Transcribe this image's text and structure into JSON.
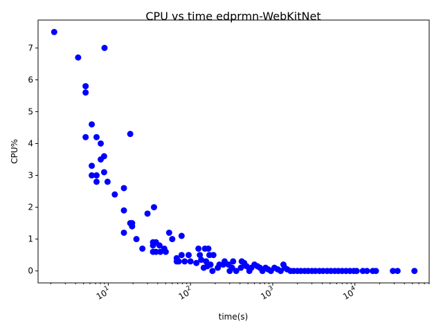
{
  "chart_data": {
    "type": "scatter",
    "title": "CPU vs time edprmn-WebKitNet",
    "xlabel": "time(s)",
    "ylabel": "CPU%",
    "xscale": "log",
    "xlim": [
      1.4,
      80000
    ],
    "ylim": [
      -0.375,
      7.875
    ],
    "grid": false,
    "marker_color": "#0000ff",
    "x_ticks": [
      {
        "value": 10,
        "base": "10",
        "exp": "1"
      },
      {
        "value": 100,
        "base": "10",
        "exp": "2"
      },
      {
        "value": 1000,
        "base": "10",
        "exp": "3"
      },
      {
        "value": 10000,
        "base": "10",
        "exp": "4"
      }
    ],
    "y_ticks": [
      {
        "value": 0,
        "label": "0"
      },
      {
        "value": 1,
        "label": "1"
      },
      {
        "value": 2,
        "label": "2"
      },
      {
        "value": 3,
        "label": "3"
      },
      {
        "value": 4,
        "label": "4"
      },
      {
        "value": 5,
        "label": "5"
      },
      {
        "value": 6,
        "label": "6"
      },
      {
        "value": 7,
        "label": "7"
      }
    ],
    "points": [
      [
        2.2,
        7.5
      ],
      [
        4.3,
        6.7
      ],
      [
        9,
        7.0
      ],
      [
        5.3,
        5.8
      ],
      [
        5.3,
        5.6
      ],
      [
        6.3,
        4.6
      ],
      [
        18.5,
        4.3
      ],
      [
        5.3,
        4.2
      ],
      [
        7.2,
        4.2
      ],
      [
        8.1,
        4.0
      ],
      [
        8.9,
        3.6
      ],
      [
        8.1,
        3.5
      ],
      [
        6.3,
        3.3
      ],
      [
        6.3,
        3.0
      ],
      [
        7.2,
        3.0
      ],
      [
        8.9,
        3.1
      ],
      [
        7.2,
        2.8
      ],
      [
        9.8,
        2.8
      ],
      [
        15.5,
        2.6
      ],
      [
        12,
        2.4
      ],
      [
        15.5,
        1.9
      ],
      [
        36,
        2.0
      ],
      [
        30,
        1.8
      ],
      [
        18.5,
        1.5
      ],
      [
        19.5,
        1.5
      ],
      [
        19.5,
        1.4
      ],
      [
        15.5,
        1.2
      ],
      [
        55,
        1.2
      ],
      [
        78,
        1.1
      ],
      [
        22,
        1.0
      ],
      [
        60,
        1.0
      ],
      [
        26,
        0.7
      ],
      [
        35,
        0.9
      ],
      [
        38,
        0.9
      ],
      [
        42,
        0.8
      ],
      [
        35,
        0.8
      ],
      [
        48,
        0.7
      ],
      [
        35,
        0.6
      ],
      [
        38,
        0.6
      ],
      [
        43,
        0.6
      ],
      [
        50,
        0.6
      ],
      [
        125,
        0.7
      ],
      [
        150,
        0.7
      ],
      [
        165,
        0.7
      ],
      [
        68,
        0.4
      ],
      [
        78,
        0.5
      ],
      [
        95,
        0.5
      ],
      [
        130,
        0.5
      ],
      [
        170,
        0.5
      ],
      [
        190,
        0.5
      ],
      [
        68,
        0.3
      ],
      [
        72,
        0.3
      ],
      [
        85,
        0.3
      ],
      [
        100,
        0.3
      ],
      [
        118,
        0.25
      ],
      [
        135,
        0.35
      ],
      [
        155,
        0.3
      ],
      [
        165,
        0.2
      ],
      [
        145,
        0.1
      ],
      [
        160,
        0.15
      ],
      [
        175,
        0.2
      ],
      [
        185,
        0.0
      ],
      [
        215,
        0.1
      ],
      [
        225,
        0.2
      ],
      [
        250,
        0.2
      ],
      [
        260,
        0.3
      ],
      [
        290,
        0.2
      ],
      [
        330,
        0.3
      ],
      [
        320,
        0.1
      ],
      [
        300,
        0.0
      ],
      [
        360,
        0.0
      ],
      [
        410,
        0.1
      ],
      [
        420,
        0.3
      ],
      [
        450,
        0.25
      ],
      [
        480,
        0.15
      ],
      [
        520,
        0.0
      ],
      [
        550,
        0.1
      ],
      [
        600,
        0.2
      ],
      [
        650,
        0.15
      ],
      [
        700,
        0.1
      ],
      [
        750,
        0.0
      ],
      [
        820,
        0.1
      ],
      [
        880,
        0.05
      ],
      [
        950,
        0.0
      ],
      [
        1050,
        0.1
      ],
      [
        1150,
        0.05
      ],
      [
        1250,
        0.0
      ],
      [
        1350,
        0.2
      ],
      [
        1400,
        0.1
      ],
      [
        1500,
        0.05
      ],
      [
        1650,
        0.0
      ],
      [
        1800,
        0.0
      ],
      [
        2000,
        0.0
      ],
      [
        2200,
        0.0
      ],
      [
        2450,
        0.0
      ],
      [
        2700,
        0.0
      ],
      [
        3000,
        0.0
      ],
      [
        3300,
        0.0
      ],
      [
        3700,
        0.0
      ],
      [
        4100,
        0.0
      ],
      [
        4600,
        0.0
      ],
      [
        5100,
        0.0
      ],
      [
        5700,
        0.0
      ],
      [
        6300,
        0.0
      ],
      [
        7000,
        0.0
      ],
      [
        7800,
        0.0
      ],
      [
        8700,
        0.0
      ],
      [
        9700,
        0.0
      ],
      [
        10500,
        0.0
      ],
      [
        12500,
        0.0
      ],
      [
        14000,
        0.0
      ],
      [
        16500,
        0.0
      ],
      [
        18000,
        0.0
      ],
      [
        29000,
        0.0
      ],
      [
        33000,
        0.0
      ],
      [
        53000,
        0.0
      ]
    ]
  }
}
